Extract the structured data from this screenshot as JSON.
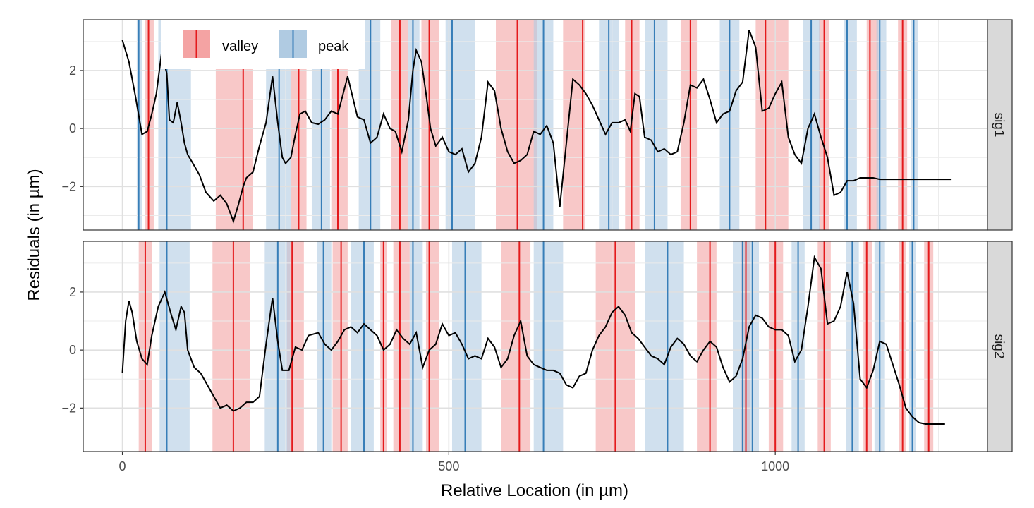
{
  "chart_data": {
    "type": "line",
    "xlabel": "Relative Location (in µm)",
    "ylabel": "Residuals (in µm)",
    "xlim": [
      -60,
      1325
    ],
    "x_ticks": [
      0,
      500,
      1000
    ],
    "ylim": [
      -3.5,
      3.75
    ],
    "y_ticks": [
      -2,
      0,
      2
    ],
    "grid": true,
    "legend": {
      "position": "top-left-inside",
      "entries": [
        {
          "label": "valley",
          "band_color": "#f4a3a3",
          "line_color": "#e41a1c"
        },
        {
          "label": "peak",
          "band_color": "#b0cbe2",
          "line_color": "#377eb8"
        }
      ]
    },
    "colors": {
      "line": "#000000",
      "valley_band": "#f4a3a3",
      "valley_line": "#e41a1c",
      "peak_band": "#b0cbe2",
      "peak_line": "#377eb8",
      "strip": "#d9d9d9"
    },
    "facets": [
      {
        "label": "sig1",
        "series": {
          "x": [
            0,
            10,
            20,
            30,
            38,
            45,
            52,
            60,
            68,
            72,
            78,
            84,
            90,
            95,
            100,
            108,
            118,
            128,
            140,
            150,
            160,
            170,
            178,
            185,
            190,
            200,
            210,
            220,
            230,
            238,
            245,
            250,
            258,
            265,
            272,
            280,
            290,
            300,
            310,
            320,
            330,
            345,
            360,
            370,
            380,
            390,
            400,
            410,
            418,
            428,
            438,
            445,
            450,
            458,
            465,
            472,
            480,
            490,
            500,
            510,
            520,
            530,
            540,
            550,
            560,
            570,
            580,
            590,
            600,
            610,
            620,
            630,
            640,
            650,
            660,
            670,
            680,
            690,
            700,
            710,
            720,
            730,
            740,
            750,
            760,
            770,
            778,
            785,
            792,
            800,
            810,
            820,
            830,
            840,
            850,
            860,
            870,
            880,
            890,
            900,
            910,
            920,
            930,
            940,
            950,
            960,
            970,
            980,
            990,
            1000,
            1010,
            1020,
            1030,
            1040,
            1050,
            1060,
            1070,
            1080,
            1090,
            1100,
            1110,
            1120,
            1130,
            1140,
            1150,
            1160,
            1170,
            1180,
            1190,
            1200,
            1210,
            1220,
            1230,
            1240,
            1250,
            1260,
            1270
          ],
          "y": [
            3.05,
            2.3,
            1.1,
            -0.2,
            -0.1,
            0.5,
            1.2,
            2.6,
            1.9,
            0.3,
            0.2,
            0.9,
            0.2,
            -0.5,
            -0.9,
            -1.2,
            -1.6,
            -2.2,
            -2.5,
            -2.3,
            -2.6,
            -3.2,
            -2.6,
            -2.0,
            -1.7,
            -1.5,
            -0.6,
            0.2,
            1.8,
            0.2,
            -1.0,
            -1.2,
            -1.0,
            -0.2,
            0.5,
            0.6,
            0.2,
            0.15,
            0.3,
            0.6,
            0.5,
            1.8,
            0.4,
            0.3,
            -0.5,
            -0.3,
            0.5,
            0.0,
            -0.1,
            -0.8,
            0.3,
            2.0,
            2.7,
            2.3,
            1.2,
            0.0,
            -0.6,
            -0.3,
            -0.8,
            -0.9,
            -0.7,
            -1.5,
            -1.2,
            -0.3,
            1.6,
            1.3,
            0.0,
            -0.8,
            -1.2,
            -1.1,
            -0.9,
            -0.1,
            -0.2,
            0.1,
            -0.5,
            -2.7,
            -0.5,
            1.7,
            1.5,
            1.2,
            0.8,
            0.3,
            -0.2,
            0.2,
            0.2,
            0.3,
            -0.1,
            1.2,
            1.1,
            -0.3,
            -0.4,
            -0.8,
            -0.7,
            -0.9,
            -0.8,
            0.2,
            1.5,
            1.4,
            1.7,
            1.0,
            0.2,
            0.5,
            0.6,
            1.3,
            1.6,
            3.4,
            2.8,
            0.6,
            0.7,
            1.2,
            1.6,
            -0.3,
            -0.9,
            -1.2,
            0.0,
            0.5,
            -0.3,
            -1.0,
            -2.3,
            -2.2,
            -1.8,
            -1.8,
            -1.7,
            -1.7,
            -1.7,
            -1.75,
            -1.75,
            -1.75,
            -1.75,
            -1.75,
            -1.75,
            -1.75,
            -1.75,
            -1.75,
            -1.75,
            -1.75,
            -1.75
          ]
        },
        "valleys": [
          {
            "center": 40,
            "band": [
              35,
              48
            ]
          },
          {
            "center": 185,
            "band": [
              143,
              200
            ]
          },
          {
            "center": 270,
            "band": [
              258,
              282
            ]
          },
          {
            "center": 330,
            "band": [
              320,
              345
            ]
          },
          {
            "center": 425,
            "band": [
              412,
              438
            ]
          },
          {
            "center": 470,
            "band": [
              458,
              485
            ]
          },
          {
            "center": 605,
            "band": [
              572,
              635
            ]
          },
          {
            "center": 705,
            "band": [
              675,
              708
            ]
          },
          {
            "center": 780,
            "band": [
              770,
              792
            ]
          },
          {
            "center": 870,
            "band": [
              855,
              880
            ]
          },
          {
            "center": 985,
            "band": [
              970,
              1020
            ]
          },
          {
            "center": 1075,
            "band": [
              1067,
              1082
            ]
          },
          {
            "center": 1145,
            "band": [
              1140,
              1158
            ]
          },
          {
            "center": 1195,
            "band": [
              1188,
              1202
            ]
          }
        ],
        "peaks": [
          {
            "center": 25,
            "band": [
              22,
              30
            ]
          },
          {
            "center": 68,
            "band": [
              55,
              105
            ]
          },
          {
            "center": 240,
            "band": [
              220,
              258
            ]
          },
          {
            "center": 305,
            "band": [
              290,
              318
            ]
          },
          {
            "center": 380,
            "band": [
              362,
              395
            ]
          },
          {
            "center": 445,
            "band": [
              438,
              455
            ]
          },
          {
            "center": 505,
            "band": [
              495,
              540
            ]
          },
          {
            "center": 645,
            "band": [
              630,
              660
            ]
          },
          {
            "center": 745,
            "band": [
              730,
              760
            ]
          },
          {
            "center": 815,
            "band": [
              800,
              835
            ]
          },
          {
            "center": 930,
            "band": [
              915,
              945
            ]
          },
          {
            "center": 1055,
            "band": [
              1042,
              1068
            ]
          },
          {
            "center": 1110,
            "band": [
              1105,
              1125
            ]
          },
          {
            "center": 1160,
            "band": [
              1155,
              1170
            ]
          },
          {
            "center": 1212,
            "band": [
              1208,
              1218
            ]
          }
        ]
      },
      {
        "label": "sig2",
        "series": {
          "x": [
            0,
            5,
            10,
            15,
            22,
            30,
            38,
            45,
            55,
            65,
            75,
            82,
            90,
            95,
            100,
            110,
            120,
            130,
            140,
            150,
            160,
            170,
            180,
            190,
            200,
            210,
            220,
            230,
            238,
            245,
            255,
            265,
            275,
            285,
            300,
            310,
            320,
            330,
            340,
            350,
            360,
            370,
            380,
            390,
            400,
            410,
            420,
            430,
            440,
            450,
            460,
            470,
            480,
            490,
            500,
            510,
            520,
            530,
            540,
            550,
            560,
            570,
            580,
            590,
            600,
            610,
            620,
            630,
            640,
            650,
            660,
            670,
            680,
            690,
            700,
            710,
            720,
            730,
            740,
            750,
            760,
            770,
            780,
            790,
            800,
            810,
            820,
            830,
            840,
            850,
            860,
            870,
            880,
            890,
            900,
            910,
            920,
            930,
            940,
            950,
            960,
            970,
            980,
            990,
            1000,
            1010,
            1020,
            1030,
            1040,
            1050,
            1060,
            1070,
            1080,
            1090,
            1100,
            1110,
            1120,
            1130,
            1140,
            1150,
            1160,
            1170,
            1180,
            1190,
            1200,
            1210,
            1220,
            1230,
            1240,
            1250,
            1260
          ],
          "y": [
            -0.8,
            1.0,
            1.7,
            1.3,
            0.3,
            -0.3,
            -0.5,
            0.5,
            1.5,
            2.0,
            1.2,
            0.7,
            1.5,
            1.3,
            0.0,
            -0.6,
            -0.8,
            -1.2,
            -1.6,
            -2.0,
            -1.9,
            -2.1,
            -2.0,
            -1.8,
            -1.8,
            -1.6,
            0.2,
            1.8,
            0.3,
            -0.7,
            -0.7,
            0.1,
            0.0,
            0.5,
            0.6,
            0.2,
            0.0,
            0.3,
            0.7,
            0.8,
            0.6,
            0.9,
            0.7,
            0.5,
            0.0,
            0.2,
            0.7,
            0.4,
            0.2,
            0.6,
            -0.6,
            0.0,
            0.2,
            0.9,
            0.5,
            0.6,
            0.2,
            -0.3,
            -0.2,
            -0.3,
            0.4,
            0.1,
            -0.6,
            -0.3,
            0.5,
            1.0,
            -0.2,
            -0.5,
            -0.6,
            -0.7,
            -0.7,
            -0.8,
            -1.2,
            -1.3,
            -0.9,
            -0.8,
            0.0,
            0.5,
            0.8,
            1.3,
            1.5,
            1.2,
            0.6,
            0.4,
            0.1,
            -0.2,
            -0.3,
            -0.5,
            0.1,
            0.4,
            0.2,
            -0.2,
            -0.4,
            0.0,
            0.3,
            0.1,
            -0.6,
            -1.1,
            -0.9,
            -0.3,
            0.8,
            1.2,
            1.1,
            0.8,
            0.7,
            0.7,
            0.5,
            -0.4,
            0.0,
            1.5,
            3.2,
            2.8,
            0.9,
            1.0,
            1.5,
            2.7,
            1.6,
            -1.0,
            -1.3,
            -0.7,
            0.3,
            0.2,
            -0.5,
            -1.2,
            -2.0,
            -2.3,
            -2.5,
            -2.55,
            -2.55,
            -2.55,
            -2.55
          ]
        },
        "valleys": [
          {
            "center": 35,
            "band": [
              25,
              45
            ]
          },
          {
            "center": 170,
            "band": [
              138,
              195
            ]
          },
          {
            "center": 260,
            "band": [
              252,
              278
            ]
          },
          {
            "center": 335,
            "band": [
              322,
              345
            ]
          },
          {
            "center": 400,
            "band": [
              395,
              405
            ]
          },
          {
            "center": 425,
            "band": [
              415,
              440
            ]
          },
          {
            "center": 470,
            "band": [
              465,
              485
            ]
          },
          {
            "center": 608,
            "band": [
              580,
              625
            ]
          },
          {
            "center": 755,
            "band": [
              725,
              785
            ]
          },
          {
            "center": 900,
            "band": [
              880,
              910
            ]
          },
          {
            "center": 955,
            "band": [
              948,
              962
            ]
          },
          {
            "center": 1000,
            "band": [
              990,
              1012
            ]
          },
          {
            "center": 1075,
            "band": [
              1065,
              1085
            ]
          },
          {
            "center": 1140,
            "band": [
              1135,
              1148
            ]
          },
          {
            "center": 1195,
            "band": [
              1190,
              1200
            ]
          },
          {
            "center": 1235,
            "band": [
              1228,
              1242
            ]
          }
        ],
        "peaks": [
          {
            "center": 68,
            "band": [
              57,
              103
            ]
          },
          {
            "center": 238,
            "band": [
              218,
              257
            ]
          },
          {
            "center": 308,
            "band": [
              298,
              320
            ]
          },
          {
            "center": 370,
            "band": [
              350,
              385
            ]
          },
          {
            "center": 445,
            "band": [
              440,
              460
            ]
          },
          {
            "center": 525,
            "band": [
              505,
              550
            ]
          },
          {
            "center": 645,
            "band": [
              630,
              675
            ]
          },
          {
            "center": 835,
            "band": [
              800,
              860
            ]
          },
          {
            "center": 950,
            "band": [
              935,
              960
            ]
          },
          {
            "center": 965,
            "band": [
              960,
              975
            ]
          },
          {
            "center": 1035,
            "band": [
              1025,
              1045
            ]
          },
          {
            "center": 1118,
            "band": [
              1108,
              1128
            ]
          },
          {
            "center": 1160,
            "band": [
              1152,
              1168
            ]
          },
          {
            "center": 1210,
            "band": [
              1205,
              1215
            ]
          }
        ]
      }
    ]
  }
}
